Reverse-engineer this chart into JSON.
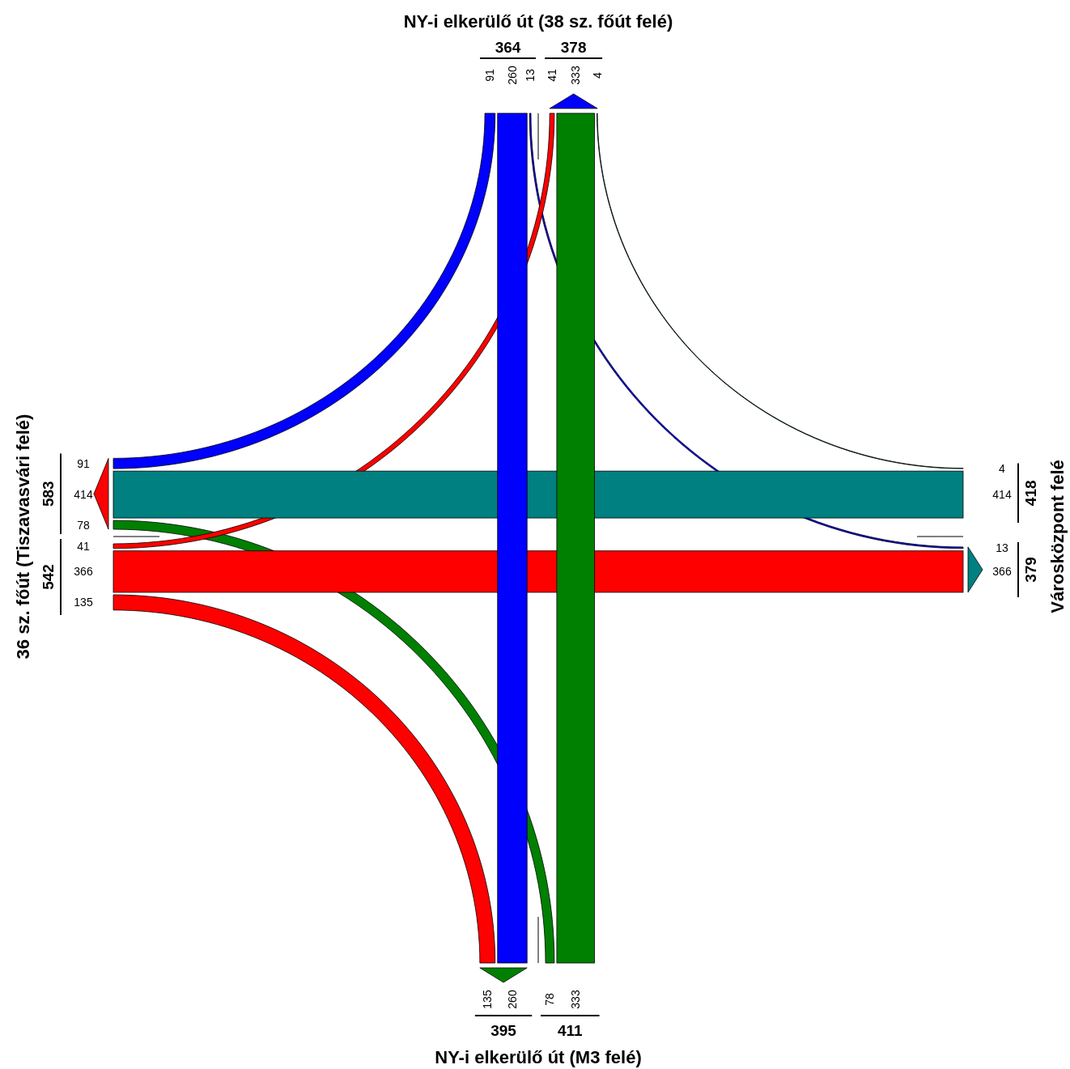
{
  "chart_data": {
    "type": "other",
    "categories": [
      "NY-i elkerülő út (38 sz. főút felé)",
      "Városközpont felé",
      "NY-i elkerülő út (M3 felé)",
      "36 sz. főút (Tiszavasvári felé)"
    ],
    "series": [
      {
        "color": "#0000ff",
        "values": [
          null,
          13,
          260,
          91
        ]
      },
      {
        "color": "#008080",
        "values": [
          4,
          null,
          null,
          414
        ]
      },
      {
        "color": "#008000",
        "values": [
          333,
          null,
          null,
          78
        ]
      },
      {
        "color": "#ff0000",
        "values": [
          41,
          366,
          135,
          null
        ]
      },
      {
        "color": "#0000ff",
        "values": [
          null,
          4,
          333,
          41
        ]
      },
      {
        "color": "#008080",
        "values": [
          13,
          null,
          null,
          366
        ]
      },
      {
        "color": "#008000",
        "values": [
          260,
          null,
          null,
          135
        ]
      },
      {
        "color": "#ff0000",
        "values": [
          91,
          414,
          78,
          null
        ]
      }
    ],
    "totals": [
      "364",
      "378",
      "418",
      "379",
      "411",
      "395",
      "542",
      "583"
    ],
    "data_labels": true
  }
}
